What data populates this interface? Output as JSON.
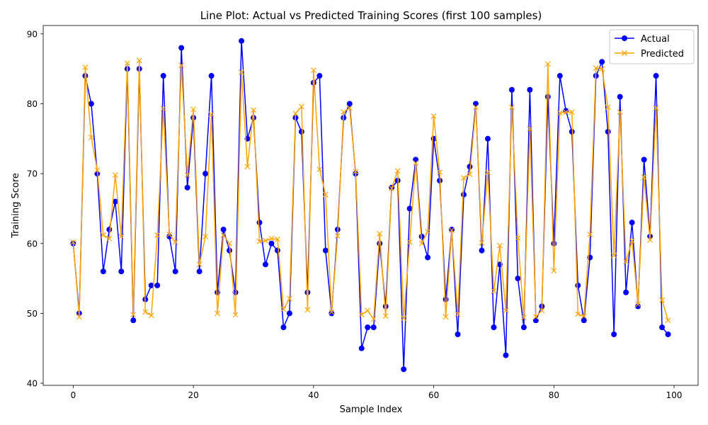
{
  "chart_data": {
    "type": "line",
    "title": "Line Plot: Actual vs Predicted Training Scores (first 100 samples)",
    "xlabel": "Sample Index",
    "ylabel": "Training Score",
    "xlim": [
      -5,
      104
    ],
    "ylim": [
      39.7,
      91.2
    ],
    "xticks": [
      0,
      20,
      40,
      60,
      80,
      100
    ],
    "yticks": [
      40,
      50,
      60,
      70,
      80,
      90
    ],
    "grid": false,
    "legend_position": "top-right",
    "series": [
      {
        "name": "Actual",
        "color": "#0000ff",
        "marker": "circle",
        "values": [
          60,
          50,
          84,
          80,
          70,
          56,
          62,
          66,
          56,
          85,
          49,
          85,
          52,
          54,
          54,
          84,
          61,
          56,
          88,
          68,
          78,
          56,
          70,
          84,
          53,
          62,
          59,
          53,
          89,
          75,
          78,
          63,
          57,
          60,
          59,
          48,
          50,
          78,
          76,
          53,
          83,
          84,
          59,
          50,
          62,
          78,
          80,
          70,
          45,
          48,
          48,
          60,
          51,
          68,
          69,
          42,
          65,
          72,
          61,
          58,
          75,
          69,
          52,
          62,
          47,
          67,
          71,
          80,
          59,
          75,
          48,
          57,
          44,
          82,
          55,
          48,
          82,
          49,
          51,
          81,
          60,
          84,
          79,
          76,
          54,
          49,
          58,
          84,
          86,
          76,
          47,
          81,
          53,
          63,
          51,
          72,
          61,
          84,
          48,
          47
        ]
      },
      {
        "name": "Predicted",
        "color": "#ffa500",
        "marker": "x",
        "values": [
          60.2,
          49.5,
          85.2,
          75.2,
          70.5,
          61.2,
          60.7,
          69.8,
          61,
          85.8,
          49.8,
          86.2,
          50.2,
          49.7,
          61.2,
          79.3,
          61.3,
          60.2,
          85.5,
          69.8,
          79.2,
          57,
          61,
          78.5,
          50,
          61.2,
          60,
          49.8,
          84.5,
          71,
          79.1,
          60.3,
          60.4,
          60.7,
          60.6,
          50.6,
          52.1,
          78.6,
          79.6,
          50.5,
          84.8,
          70.6,
          67,
          50.2,
          61.1,
          78.8,
          79.4,
          70.3,
          49.8,
          50.4,
          49.2,
          61.4,
          49.6,
          67.9,
          70.4,
          49.3,
          60.2,
          71.5,
          60,
          61.7,
          78.2,
          70.2,
          49.5,
          61.9,
          49.9,
          69.4,
          69.9,
          79.5,
          60.1,
          70.2,
          53.2,
          59.7,
          50.4,
          79.5,
          60.8,
          49.4,
          76.4,
          49.5,
          50.4,
          85.7,
          56.1,
          78.7,
          78.8,
          78.8,
          49.9,
          49.6,
          61.3,
          85.1,
          85,
          79.5,
          58.3,
          78.8,
          57.4,
          60.4,
          51.3,
          69.5,
          60.5,
          79.4,
          51.9,
          49
        ]
      }
    ]
  }
}
